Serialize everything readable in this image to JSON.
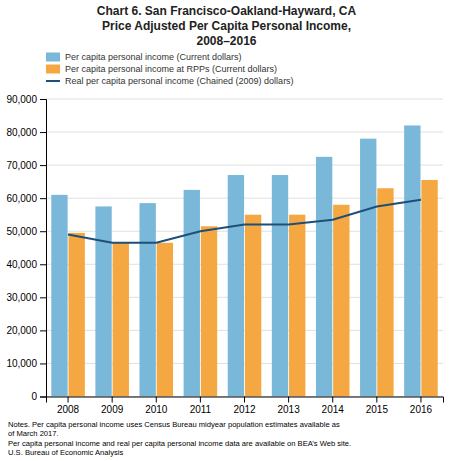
{
  "chart_data": {
    "type": "bar",
    "title": "Chart 6. San Francisco-Oakland-Hayward, CA\nPrice Adjusted Per Capita Personal Income,\n2008–2016",
    "categories": [
      "2008",
      "2009",
      "2010",
      "2011",
      "2012",
      "2013",
      "2014",
      "2015",
      "2016"
    ],
    "series": [
      {
        "name": "Per capita personal income (Current dollars)",
        "type": "bar",
        "color": "#7ab8d9",
        "values": [
          61000,
          57500,
          58500,
          62500,
          67000,
          67000,
          72500,
          78000,
          82000
        ]
      },
      {
        "name": "Per capita personal income at RPPs (Current dollars)",
        "type": "bar",
        "color": "#f5a841",
        "values": [
          49500,
          46500,
          46500,
          51500,
          55000,
          55000,
          58000,
          63000,
          65500
        ]
      },
      {
        "name": "Real per capita personal income (Chained (2009) dollars)",
        "type": "line",
        "color": "#1f4e79",
        "values": [
          49000,
          46500,
          46500,
          50000,
          52000,
          52000,
          53500,
          57500,
          59500
        ]
      }
    ],
    "ylim": [
      0,
      90000
    ],
    "yticks": [
      0,
      {
        "value": 10000,
        "label": "10,000"
      },
      {
        "value": 20000,
        "label": "20,000"
      },
      {
        "value": 30000,
        "label": "30,000"
      },
      {
        "value": 40000,
        "label": "40,000"
      },
      {
        "value": 50000,
        "label": "50,000"
      },
      {
        "value": 60000,
        "label": "60,000"
      },
      {
        "value": 70000,
        "label": "70,000"
      },
      {
        "value": 80000,
        "label": "80,000"
      },
      {
        "value": 90000,
        "label": "90,000"
      }
    ],
    "grid": true,
    "legend": "upper left",
    "annotations": [
      "Notes. Per capita personal income uses Census Bureau midyear population estimates available as",
      "of March 2017.",
      "Per capita personal income and real per capita personal income data are available on BEA’s Web site.",
      "U.S. Bureau of Economic Analysis"
    ]
  }
}
